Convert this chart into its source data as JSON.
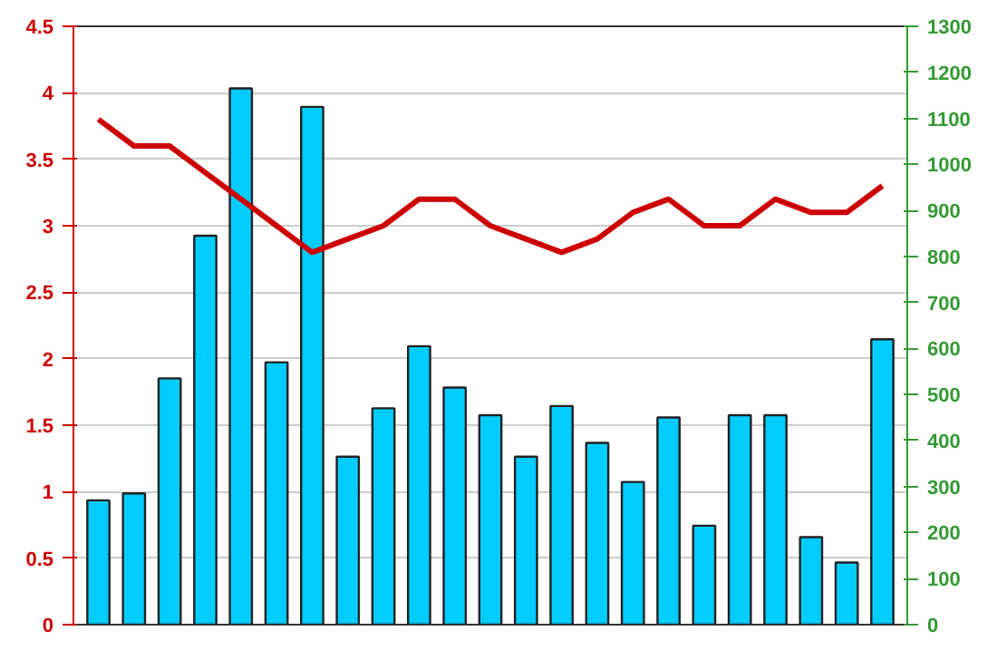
{
  "chart_data": {
    "type": "bar",
    "categories": [
      null,
      null,
      null,
      null,
      null,
      null,
      null,
      null,
      null,
      null,
      null,
      null,
      null,
      null,
      null,
      null,
      null,
      null,
      null,
      null,
      null,
      null,
      null
    ],
    "series": [
      {
        "axis": "y2",
        "color": "#00ccff",
        "values": [
          270,
          285,
          535,
          845,
          1165,
          570,
          1125,
          365,
          470,
          605,
          515,
          455,
          365,
          475,
          395,
          310,
          450,
          215,
          455,
          455,
          190,
          135,
          620
        ]
      },
      {
        "type": "line",
        "axis": "y",
        "color": "#cc0000",
        "values": [
          3.8,
          3.6,
          3.6,
          3.4,
          3.2,
          3.0,
          2.8,
          2.9,
          3.0,
          3.2,
          3.2,
          3.0,
          2.9,
          2.8,
          2.9,
          3.1,
          3.2,
          3.0,
          3.0,
          3.2,
          3.1,
          3.1,
          3.3
        ]
      }
    ],
    "ylim": [
      0,
      4.5
    ],
    "yticks": [
      0,
      0.5,
      1,
      1.5,
      2,
      2.5,
      3,
      3.5,
      4,
      4.5
    ],
    "y2lim": [
      0,
      1300
    ],
    "y2ticks": [
      0,
      100,
      200,
      300,
      400,
      500,
      600,
      700,
      800,
      900,
      1000,
      1100,
      1200,
      1300
    ],
    "grid": "y",
    "marker": "none",
    "line_style": "solid"
  }
}
